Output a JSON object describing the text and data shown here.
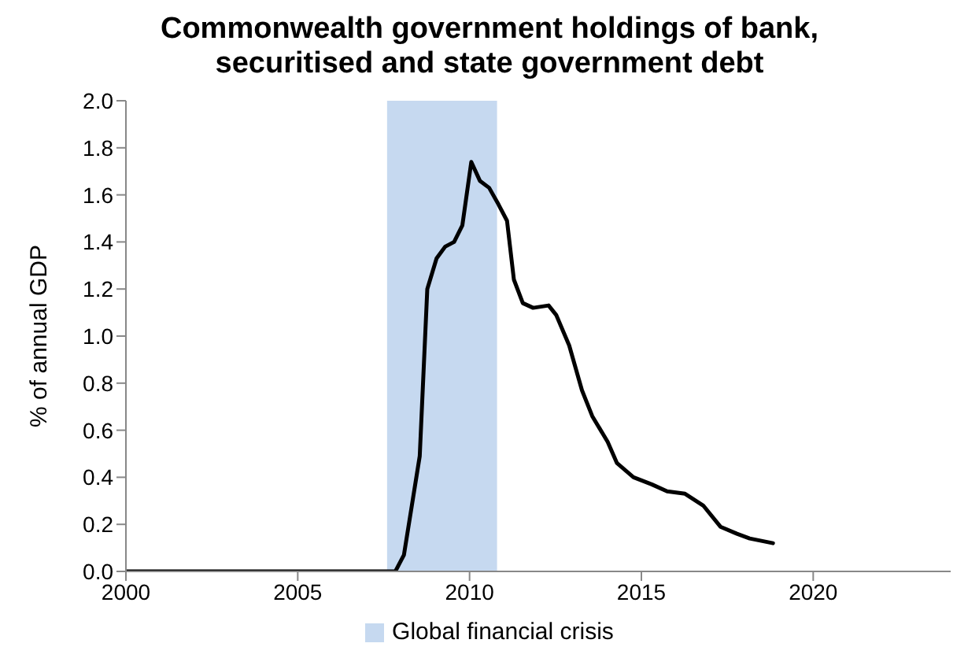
{
  "chart_data": {
    "type": "line",
    "title": "Commonwealth government holdings of bank, securitised and state government debt",
    "ylabel": "% of annual GDP",
    "series": [
      {
        "color": "#000000",
        "x": [
          2000,
          2007.6,
          2007.84,
          2008.09,
          2008.32,
          2008.55,
          2008.77,
          2009.04,
          2009.29,
          2009.55,
          2009.79,
          2010.05,
          2010.3,
          2010.57,
          2010.84,
          2011.09,
          2011.29,
          2011.55,
          2011.85,
          2012.3,
          2012.52,
          2012.9,
          2013.27,
          2013.57,
          2014.02,
          2014.29,
          2014.77,
          2015.3,
          2015.75,
          2016.27,
          2016.8,
          2017.3,
          2017.78,
          2018.15,
          2018.83
        ],
        "values": [
          0,
          0,
          0,
          0.07,
          0.28,
          0.49,
          1.2,
          1.33,
          1.38,
          1.4,
          1.47,
          1.74,
          1.66,
          1.63,
          1.56,
          1.49,
          1.24,
          1.14,
          1.12,
          1.13,
          1.09,
          0.96,
          0.77,
          0.66,
          0.55,
          0.46,
          0.4,
          0.37,
          0.34,
          0.33,
          0.28,
          0.19,
          0.16,
          0.14,
          0.12
        ]
      }
    ],
    "bands": [
      {
        "axis": "x",
        "from": 2007.6,
        "to": 2010.8,
        "label": "Global financial crisis",
        "color": "#c6d9f0"
      }
    ],
    "xlim": [
      2000,
      2024
    ],
    "xticks": [
      2000,
      2005,
      2010,
      2015,
      2020
    ],
    "ylim": [
      0,
      2
    ],
    "yticks": [
      {
        "value": 0,
        "label": "0.0"
      },
      {
        "value": 0.2,
        "label": "0.2"
      },
      {
        "value": 0.4,
        "label": "0.4"
      },
      {
        "value": 0.6,
        "label": "0.6"
      },
      {
        "value": 0.8,
        "label": "0.8"
      },
      {
        "value": 1,
        "label": "1.0"
      },
      {
        "value": 1.2,
        "label": "1.2"
      },
      {
        "value": 1.4,
        "label": "1.4"
      },
      {
        "value": 1.6,
        "label": "1.6"
      },
      {
        "value": 1.8,
        "label": "1.8"
      },
      {
        "value": 2,
        "label": "2.0"
      }
    ],
    "grid": false,
    "legend": "bottom",
    "marker": "none",
    "line_style": "solid"
  }
}
